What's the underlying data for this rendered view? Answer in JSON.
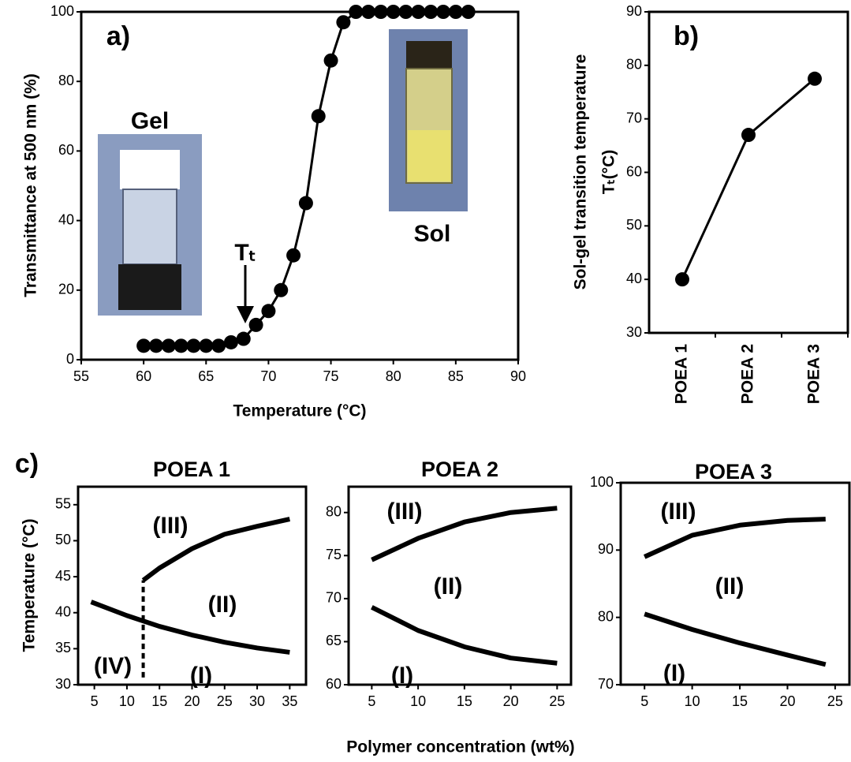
{
  "chart_data": [
    {
      "type": "line",
      "panel_label": "a)",
      "xlabel": "Temperature (°C)",
      "ylabel": "Transmittance at 500 nm (%)",
      "x": [
        60,
        61,
        62,
        63,
        64,
        65,
        66,
        67,
        68,
        69,
        70,
        71,
        72,
        73,
        74,
        75,
        76,
        77,
        78,
        79,
        80,
        81,
        82,
        83,
        84,
        85,
        86
      ],
      "values": [
        4,
        4,
        4,
        4,
        4,
        4,
        4,
        5,
        6,
        10,
        14,
        20,
        30,
        45,
        70,
        86,
        97,
        100,
        100,
        100,
        100,
        100,
        100,
        100,
        100,
        100,
        100
      ],
      "color": "#000000",
      "markers": true,
      "xlim": [
        55,
        90
      ],
      "xticks": [
        55,
        60,
        65,
        70,
        75,
        80,
        85,
        90
      ],
      "ylim": [
        0,
        100
      ],
      "yticks": [
        0,
        20,
        40,
        60,
        80,
        100
      ],
      "annotations": [
        "Gel",
        "Sol",
        "Tₜ"
      ]
    },
    {
      "type": "line",
      "panel_label": "b)",
      "ylabel": [
        "Sol-gel transition temperature",
        "Tₜ(°C)"
      ],
      "categories": [
        "POEA 1",
        "POEA 2",
        "POEA 3"
      ],
      "values": [
        40,
        67,
        77.5
      ],
      "color": "#000000",
      "markers": true,
      "ylim": [
        30,
        90
      ],
      "yticks": [
        30,
        40,
        50,
        60,
        70,
        80,
        90
      ]
    },
    {
      "type": "line",
      "panel_label": "c)",
      "title": "POEA 1",
      "ylabel": "Temperature (°C)",
      "series": [
        {
          "color": "#000000",
          "x": [
            12.5,
            15,
            20,
            25,
            30,
            35
          ],
          "values": [
            44.5,
            46.2,
            48.9,
            50.9,
            52,
            53
          ]
        },
        {
          "color": "#000000",
          "x": [
            4.5,
            10,
            15,
            20,
            25,
            30,
            35
          ],
          "values": [
            41.5,
            39.6,
            38.1,
            36.9,
            35.9,
            35.1,
            34.5
          ]
        },
        {
          "color": "#000000",
          "style": "dashed",
          "x": [
            12.5,
            12.5
          ],
          "values": [
            31,
            44.5
          ]
        }
      ],
      "xlim": [
        2.5,
        37.5
      ],
      "xticks": [
        5,
        10,
        15,
        20,
        25,
        30,
        35
      ],
      "ylim": [
        30,
        57.5
      ],
      "yticks": [
        30,
        35,
        40,
        45,
        50,
        55
      ],
      "annotations": [
        "(III)",
        "(II)",
        "(I)",
        "(IV)"
      ]
    },
    {
      "type": "line",
      "title": "POEA 2",
      "xlabel": "Polymer concentration (wt%)",
      "series": [
        {
          "color": "#000000",
          "x": [
            5,
            10,
            15,
            20,
            25
          ],
          "values": [
            74.5,
            77,
            78.9,
            80,
            80.5
          ]
        },
        {
          "color": "#000000",
          "x": [
            5,
            10,
            15,
            20,
            25
          ],
          "values": [
            69,
            66.3,
            64.4,
            63.1,
            62.5
          ]
        }
      ],
      "xlim": [
        2.5,
        26.5
      ],
      "xticks": [
        5,
        10,
        15,
        20,
        25
      ],
      "ylim": [
        60,
        83
      ],
      "yticks": [
        60,
        65,
        70,
        75,
        80
      ],
      "annotations": [
        "(III)",
        "(II)",
        "(I)"
      ]
    },
    {
      "type": "line",
      "title": "POEA 3",
      "series": [
        {
          "color": "#000000",
          "x": [
            5,
            10,
            15,
            20,
            24
          ],
          "values": [
            89,
            92.2,
            93.7,
            94.4,
            94.6
          ]
        },
        {
          "color": "#000000",
          "x": [
            5,
            10,
            15,
            20,
            24
          ],
          "values": [
            80.5,
            78.2,
            76.2,
            74.4,
            73
          ]
        }
      ],
      "xlim": [
        2.5,
        26.5
      ],
      "xticks": [
        5,
        10,
        15,
        20,
        25
      ],
      "ylim": [
        70,
        100
      ],
      "yticks": [
        70,
        80,
        90,
        100
      ],
      "annotations": [
        "(III)",
        "(II)",
        "(I)"
      ]
    }
  ]
}
